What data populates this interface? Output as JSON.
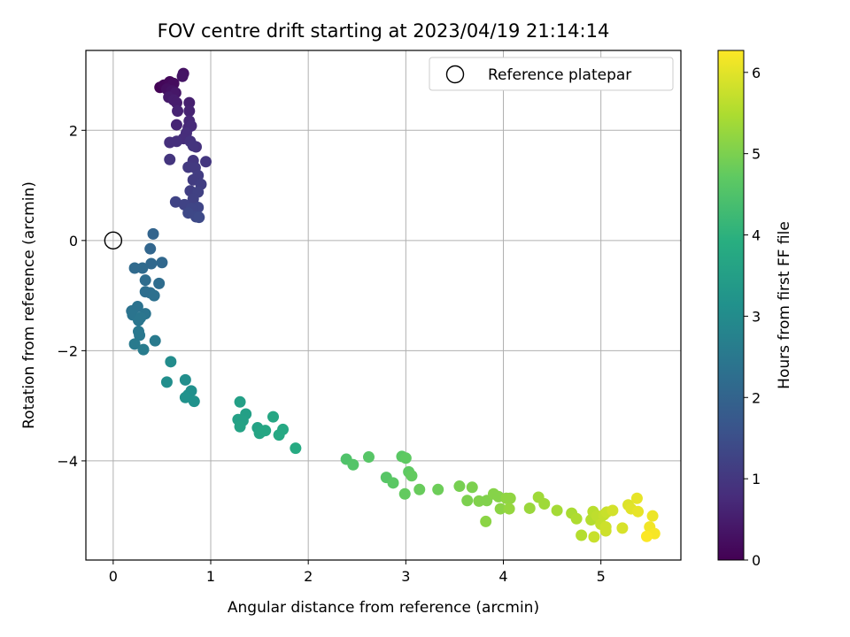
{
  "chart_data": {
    "type": "scatter",
    "title": "FOV centre drift starting at 2023/04/19 21:14:14",
    "xlabel": "Angular distance from reference (arcmin)",
    "ylabel": "Rotation from reference (arcmin)",
    "xlim": [
      -0.28,
      5.82
    ],
    "ylim": [
      -5.8,
      3.45
    ],
    "xticks": [
      0,
      1,
      2,
      3,
      4,
      5
    ],
    "yticks": [
      -4,
      -2,
      0,
      2
    ],
    "grid": true,
    "legend": {
      "position": "top-right",
      "entries": [
        "Reference platepar"
      ]
    },
    "reference_point": {
      "x": 0,
      "y": 0,
      "label": "Reference platepar"
    },
    "colorbar": {
      "label": "Hours from first FF file",
      "range": [
        0,
        6.27
      ],
      "ticks": [
        0,
        1,
        2,
        3,
        4,
        5,
        6
      ],
      "colormap": "viridis"
    },
    "points": [
      {
        "x": 0.48,
        "y": 2.78,
        "h": 0.05
      },
      {
        "x": 0.52,
        "y": 2.82,
        "h": 0.1
      },
      {
        "x": 0.58,
        "y": 2.88,
        "h": 0.15
      },
      {
        "x": 0.62,
        "y": 2.85,
        "h": 0.2
      },
      {
        "x": 0.55,
        "y": 2.75,
        "h": 0.25
      },
      {
        "x": 0.6,
        "y": 2.72,
        "h": 0.3
      },
      {
        "x": 0.72,
        "y": 3.03,
        "h": 0.3
      },
      {
        "x": 0.71,
        "y": 2.98,
        "h": 0.35
      },
      {
        "x": 0.64,
        "y": 2.68,
        "h": 0.4
      },
      {
        "x": 0.57,
        "y": 2.6,
        "h": 0.45
      },
      {
        "x": 0.62,
        "y": 2.55,
        "h": 0.5
      },
      {
        "x": 0.65,
        "y": 2.5,
        "h": 0.5
      },
      {
        "x": 0.78,
        "y": 2.5,
        "h": 0.55
      },
      {
        "x": 0.66,
        "y": 2.35,
        "h": 0.6
      },
      {
        "x": 0.78,
        "y": 2.35,
        "h": 0.6
      },
      {
        "x": 0.65,
        "y": 2.1,
        "h": 0.65
      },
      {
        "x": 0.78,
        "y": 2.17,
        "h": 0.7
      },
      {
        "x": 0.77,
        "y": 2.05,
        "h": 0.7
      },
      {
        "x": 0.8,
        "y": 2.08,
        "h": 0.75
      },
      {
        "x": 0.75,
        "y": 1.95,
        "h": 0.8
      },
      {
        "x": 0.72,
        "y": 1.85,
        "h": 0.8
      },
      {
        "x": 0.58,
        "y": 1.78,
        "h": 0.85
      },
      {
        "x": 0.65,
        "y": 1.8,
        "h": 0.85
      },
      {
        "x": 0.79,
        "y": 1.8,
        "h": 0.9
      },
      {
        "x": 0.85,
        "y": 1.7,
        "h": 0.9
      },
      {
        "x": 0.82,
        "y": 1.72,
        "h": 0.95
      },
      {
        "x": 0.58,
        "y": 1.47,
        "h": 0.95
      },
      {
        "x": 0.82,
        "y": 1.45,
        "h": 1.0
      },
      {
        "x": 0.95,
        "y": 1.43,
        "h": 1.0
      },
      {
        "x": 0.77,
        "y": 1.33,
        "h": 1.05
      },
      {
        "x": 0.84,
        "y": 1.32,
        "h": 1.05
      },
      {
        "x": 0.87,
        "y": 1.18,
        "h": 1.1
      },
      {
        "x": 0.82,
        "y": 1.1,
        "h": 1.1
      },
      {
        "x": 0.9,
        "y": 1.02,
        "h": 1.15
      },
      {
        "x": 0.79,
        "y": 0.9,
        "h": 1.15
      },
      {
        "x": 0.87,
        "y": 0.88,
        "h": 1.2
      },
      {
        "x": 0.82,
        "y": 0.75,
        "h": 1.2
      },
      {
        "x": 0.64,
        "y": 0.7,
        "h": 1.25
      },
      {
        "x": 0.73,
        "y": 0.65,
        "h": 1.25
      },
      {
        "x": 0.87,
        "y": 0.6,
        "h": 1.3
      },
      {
        "x": 0.8,
        "y": 0.58,
        "h": 1.3
      },
      {
        "x": 0.77,
        "y": 0.5,
        "h": 1.35
      },
      {
        "x": 0.85,
        "y": 0.43,
        "h": 1.35
      },
      {
        "x": 0.88,
        "y": 0.42,
        "h": 1.4
      },
      {
        "x": 0.41,
        "y": 0.12,
        "h": 2.0
      },
      {
        "x": 0.38,
        "y": -0.15,
        "h": 2.05
      },
      {
        "x": 0.5,
        "y": -0.4,
        "h": 2.1
      },
      {
        "x": 0.39,
        "y": -0.42,
        "h": 2.1
      },
      {
        "x": 0.22,
        "y": -0.5,
        "h": 2.15
      },
      {
        "x": 0.3,
        "y": -0.5,
        "h": 2.15
      },
      {
        "x": 0.33,
        "y": -0.72,
        "h": 2.2
      },
      {
        "x": 0.47,
        "y": -0.78,
        "h": 2.2
      },
      {
        "x": 0.33,
        "y": -0.93,
        "h": 2.25
      },
      {
        "x": 0.38,
        "y": -0.95,
        "h": 2.25
      },
      {
        "x": 0.42,
        "y": -1.0,
        "h": 2.3
      },
      {
        "x": 0.25,
        "y": -1.2,
        "h": 2.35
      },
      {
        "x": 0.19,
        "y": -1.28,
        "h": 2.35
      },
      {
        "x": 0.2,
        "y": -1.35,
        "h": 2.4
      },
      {
        "x": 0.33,
        "y": -1.33,
        "h": 2.4
      },
      {
        "x": 0.28,
        "y": -1.4,
        "h": 2.45
      },
      {
        "x": 0.26,
        "y": -1.45,
        "h": 2.45
      },
      {
        "x": 0.26,
        "y": -1.65,
        "h": 2.5
      },
      {
        "x": 0.27,
        "y": -1.72,
        "h": 2.5
      },
      {
        "x": 0.43,
        "y": -1.82,
        "h": 2.55
      },
      {
        "x": 0.22,
        "y": -1.88,
        "h": 2.55
      },
      {
        "x": 0.31,
        "y": -1.98,
        "h": 2.6
      },
      {
        "x": 0.59,
        "y": -2.2,
        "h": 3.0
      },
      {
        "x": 0.55,
        "y": -2.57,
        "h": 3.05
      },
      {
        "x": 0.74,
        "y": -2.53,
        "h": 3.05
      },
      {
        "x": 0.8,
        "y": -2.73,
        "h": 3.1
      },
      {
        "x": 0.77,
        "y": -2.8,
        "h": 3.1
      },
      {
        "x": 0.74,
        "y": -2.85,
        "h": 3.15
      },
      {
        "x": 0.83,
        "y": -2.92,
        "h": 3.15
      },
      {
        "x": 1.3,
        "y": -2.93,
        "h": 3.5
      },
      {
        "x": 1.36,
        "y": -3.15,
        "h": 3.5
      },
      {
        "x": 1.28,
        "y": -3.25,
        "h": 3.55
      },
      {
        "x": 1.33,
        "y": -3.27,
        "h": 3.55
      },
      {
        "x": 1.3,
        "y": -3.38,
        "h": 3.6
      },
      {
        "x": 1.48,
        "y": -3.4,
        "h": 3.6
      },
      {
        "x": 1.52,
        "y": -3.47,
        "h": 3.65
      },
      {
        "x": 1.5,
        "y": -3.5,
        "h": 3.65
      },
      {
        "x": 1.56,
        "y": -3.45,
        "h": 3.7
      },
      {
        "x": 1.64,
        "y": -3.2,
        "h": 3.7
      },
      {
        "x": 1.74,
        "y": -3.43,
        "h": 3.75
      },
      {
        "x": 1.7,
        "y": -3.53,
        "h": 3.75
      },
      {
        "x": 1.87,
        "y": -3.77,
        "h": 3.8
      },
      {
        "x": 2.39,
        "y": -3.97,
        "h": 4.5
      },
      {
        "x": 2.46,
        "y": -4.07,
        "h": 4.55
      },
      {
        "x": 2.62,
        "y": -3.93,
        "h": 4.6
      },
      {
        "x": 2.8,
        "y": -4.3,
        "h": 4.6
      },
      {
        "x": 2.87,
        "y": -4.4,
        "h": 4.65
      },
      {
        "x": 2.96,
        "y": -3.92,
        "h": 4.65
      },
      {
        "x": 3.0,
        "y": -3.95,
        "h": 4.7
      },
      {
        "x": 3.03,
        "y": -4.2,
        "h": 4.7
      },
      {
        "x": 3.06,
        "y": -4.27,
        "h": 4.75
      },
      {
        "x": 2.99,
        "y": -4.6,
        "h": 4.75
      },
      {
        "x": 3.14,
        "y": -4.52,
        "h": 4.8
      },
      {
        "x": 3.33,
        "y": -4.52,
        "h": 4.85
      },
      {
        "x": 3.55,
        "y": -4.46,
        "h": 4.95
      },
      {
        "x": 3.68,
        "y": -4.48,
        "h": 5.0
      },
      {
        "x": 3.63,
        "y": -4.72,
        "h": 5.0
      },
      {
        "x": 3.75,
        "y": -4.73,
        "h": 5.05
      },
      {
        "x": 3.83,
        "y": -4.72,
        "h": 5.05
      },
      {
        "x": 3.9,
        "y": -4.6,
        "h": 5.1
      },
      {
        "x": 3.95,
        "y": -4.65,
        "h": 5.1
      },
      {
        "x": 3.82,
        "y": -5.1,
        "h": 5.15
      },
      {
        "x": 3.97,
        "y": -4.87,
        "h": 5.15
      },
      {
        "x": 4.03,
        "y": -4.68,
        "h": 5.2
      },
      {
        "x": 4.07,
        "y": -4.68,
        "h": 5.2
      },
      {
        "x": 4.06,
        "y": -4.87,
        "h": 5.25
      },
      {
        "x": 4.27,
        "y": -4.86,
        "h": 5.3
      },
      {
        "x": 4.36,
        "y": -4.66,
        "h": 5.35
      },
      {
        "x": 4.42,
        "y": -4.78,
        "h": 5.35
      },
      {
        "x": 4.55,
        "y": -4.9,
        "h": 5.4
      },
      {
        "x": 4.7,
        "y": -4.95,
        "h": 5.45
      },
      {
        "x": 4.75,
        "y": -5.05,
        "h": 5.5
      },
      {
        "x": 4.8,
        "y": -5.35,
        "h": 5.55
      },
      {
        "x": 4.9,
        "y": -5.07,
        "h": 5.55
      },
      {
        "x": 4.92,
        "y": -4.92,
        "h": 5.6
      },
      {
        "x": 4.96,
        "y": -5.0,
        "h": 5.65
      },
      {
        "x": 5.0,
        "y": -5.15,
        "h": 5.7
      },
      {
        "x": 5.03,
        "y": -4.98,
        "h": 5.7
      },
      {
        "x": 5.06,
        "y": -4.93,
        "h": 5.75
      },
      {
        "x": 4.93,
        "y": -5.38,
        "h": 5.75
      },
      {
        "x": 5.05,
        "y": -5.27,
        "h": 5.8
      },
      {
        "x": 5.05,
        "y": -5.2,
        "h": 5.8
      },
      {
        "x": 5.12,
        "y": -4.9,
        "h": 5.85
      },
      {
        "x": 5.22,
        "y": -5.22,
        "h": 5.9
      },
      {
        "x": 5.28,
        "y": -4.8,
        "h": 5.95
      },
      {
        "x": 5.31,
        "y": -4.87,
        "h": 6.0
      },
      {
        "x": 5.38,
        "y": -4.92,
        "h": 6.05
      },
      {
        "x": 5.37,
        "y": -4.68,
        "h": 6.05
      },
      {
        "x": 5.53,
        "y": -5.0,
        "h": 6.1
      },
      {
        "x": 5.5,
        "y": -5.2,
        "h": 6.15
      },
      {
        "x": 5.55,
        "y": -5.32,
        "h": 6.2
      },
      {
        "x": 5.47,
        "y": -5.37,
        "h": 6.25
      }
    ]
  }
}
